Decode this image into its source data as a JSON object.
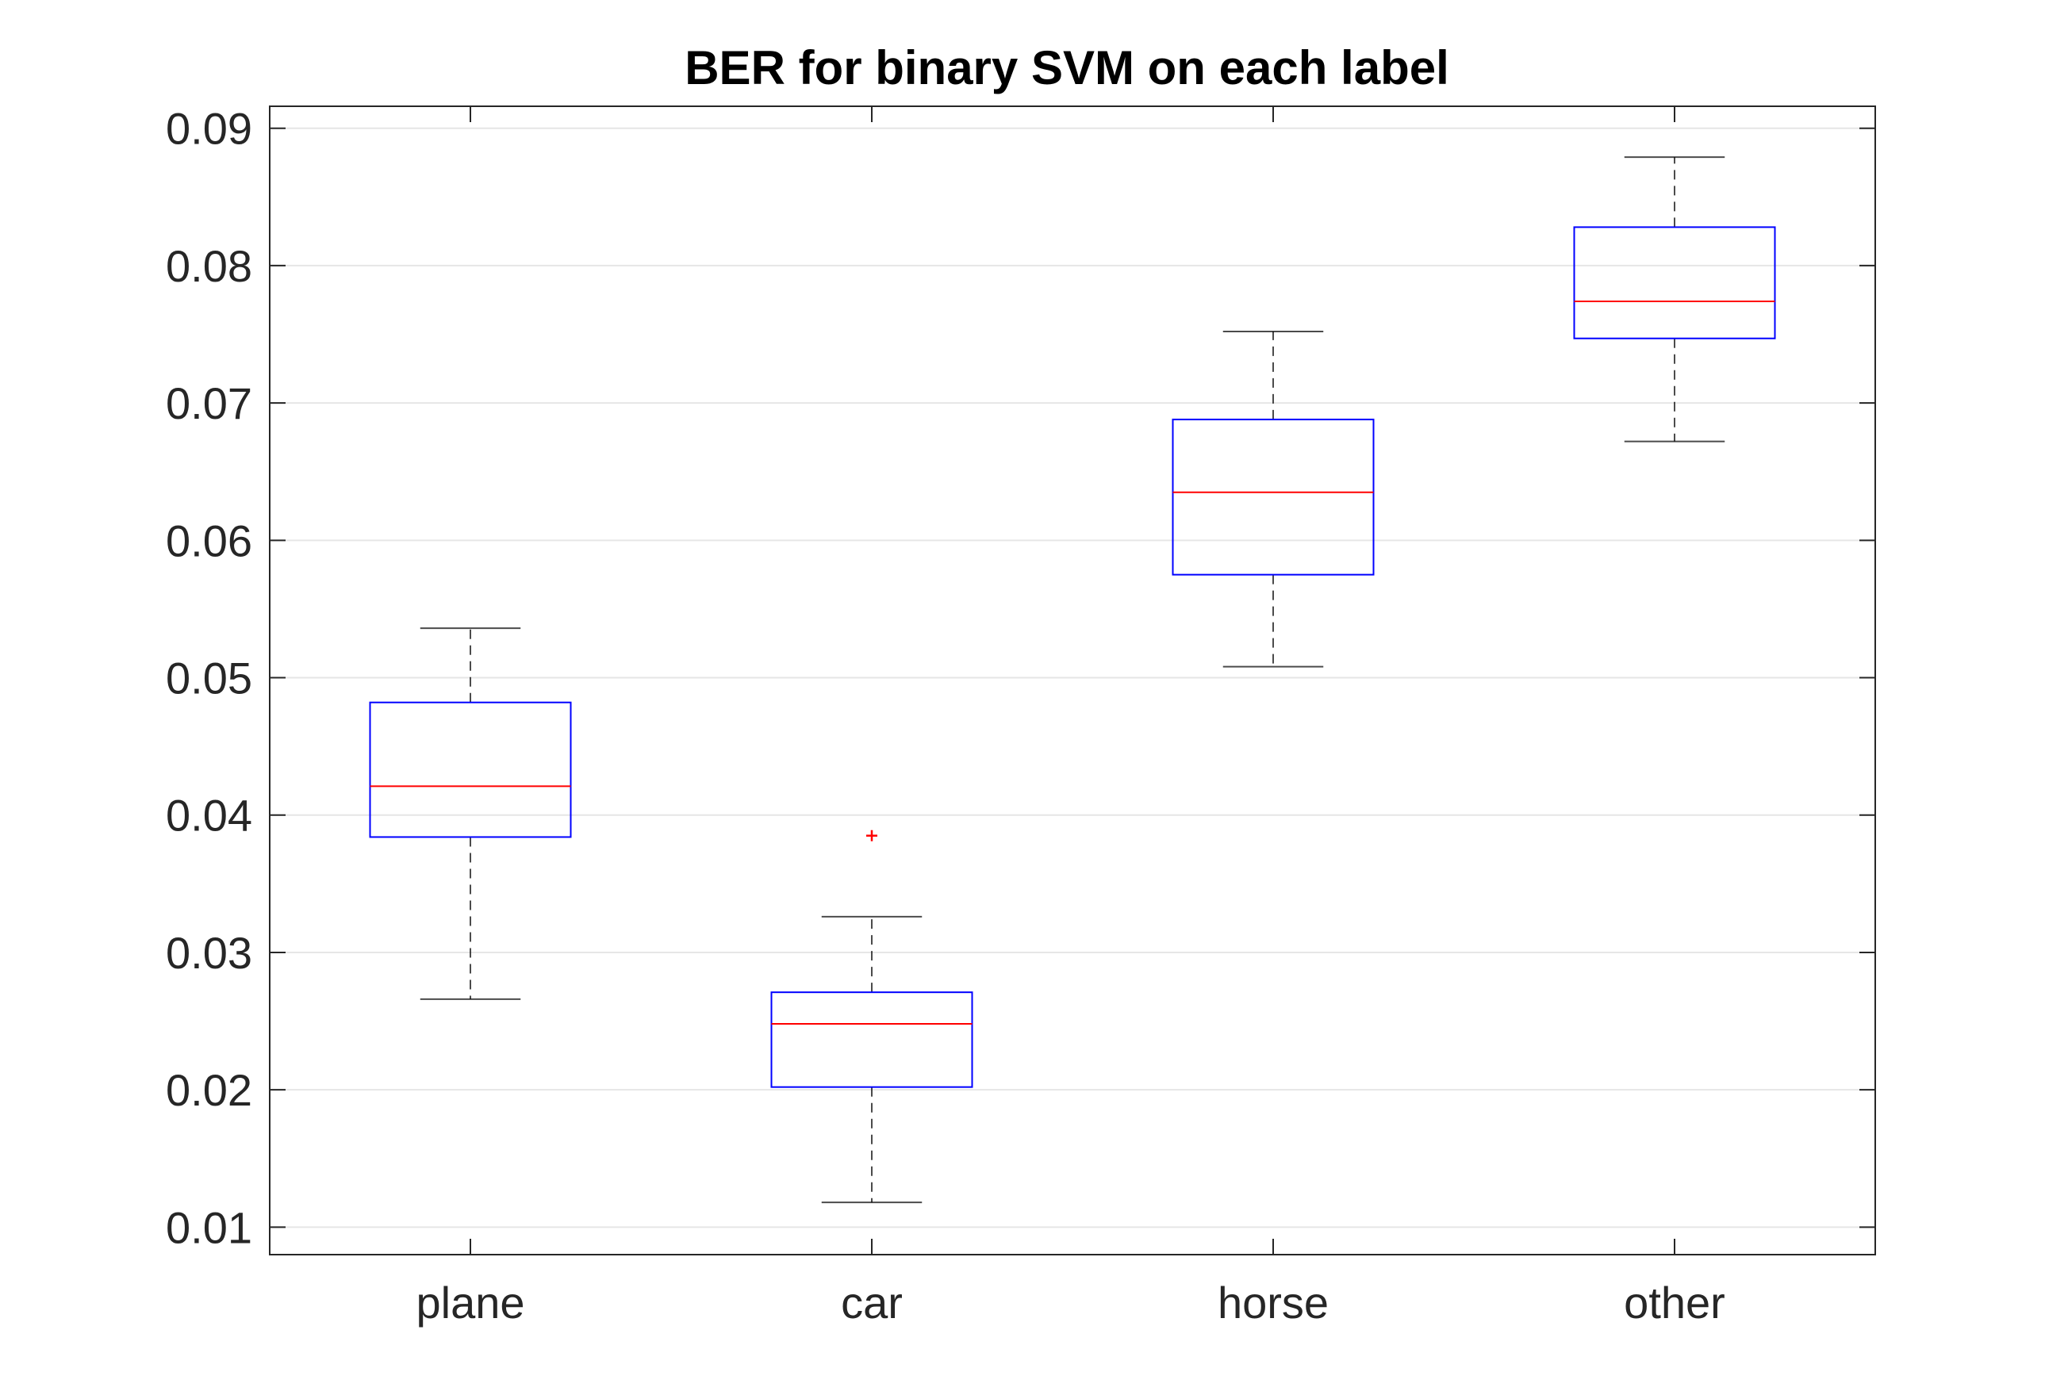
{
  "chart_data": {
    "type": "box",
    "title": "BER for binary SVM on each label",
    "xlabel": "",
    "ylabel": "",
    "categories": [
      "plane",
      "car",
      "horse",
      "other"
    ],
    "ylim": [
      0.008,
      0.0916
    ],
    "yticks": [
      0.01,
      0.02,
      0.03,
      0.04,
      0.05,
      0.06,
      0.07,
      0.08,
      0.09
    ],
    "ytick_labels": [
      "0.01",
      "0.02",
      "0.03",
      "0.04",
      "0.05",
      "0.06",
      "0.07",
      "0.08",
      "0.09"
    ],
    "grid": true,
    "boxes": [
      {
        "category": "plane",
        "whisker_low": 0.0266,
        "q1": 0.0384,
        "median": 0.0421,
        "q3": 0.0482,
        "whisker_high": 0.0536,
        "outliers": []
      },
      {
        "category": "car",
        "whisker_low": 0.0118,
        "q1": 0.0202,
        "median": 0.0248,
        "q3": 0.0271,
        "whisker_high": 0.0326,
        "outliers": [
          0.0385
        ]
      },
      {
        "category": "horse",
        "whisker_low": 0.0508,
        "q1": 0.0575,
        "median": 0.0635,
        "q3": 0.0688,
        "whisker_high": 0.0752,
        "outliers": []
      },
      {
        "category": "other",
        "whisker_low": 0.0672,
        "q1": 0.0747,
        "median": 0.0774,
        "q3": 0.0828,
        "whisker_high": 0.0879,
        "outliers": []
      }
    ],
    "colors": {
      "box": "#0000ff",
      "median": "#ff0000",
      "whisker": "#000000",
      "outlier": "#ff0000",
      "axis": "#262626",
      "grid": "#e6e6e6"
    }
  }
}
